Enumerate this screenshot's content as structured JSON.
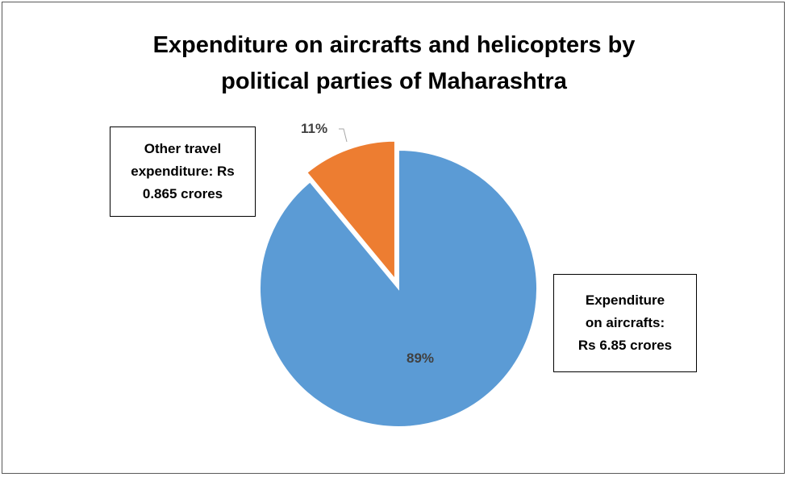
{
  "chart_data": {
    "type": "pie",
    "title": "Expenditure on aircrafts and helicopters by political parties of Maharashtra",
    "title_lines": [
      "Expenditure on aircrafts and helicopters by",
      "political parties of Maharashtra"
    ],
    "slices": [
      {
        "label_lines": [
          "Expenditure",
          "on aircrafts:",
          "Rs 6.85 crores"
        ],
        "value": 89,
        "percent_label": "89%",
        "color": "#5B9BD5"
      },
      {
        "label_lines": [
          "Other travel",
          "expenditure: Rs",
          "0.865 crores"
        ],
        "value": 11,
        "percent_label": "11%",
        "color": "#ED7D31",
        "exploded": true
      }
    ]
  }
}
